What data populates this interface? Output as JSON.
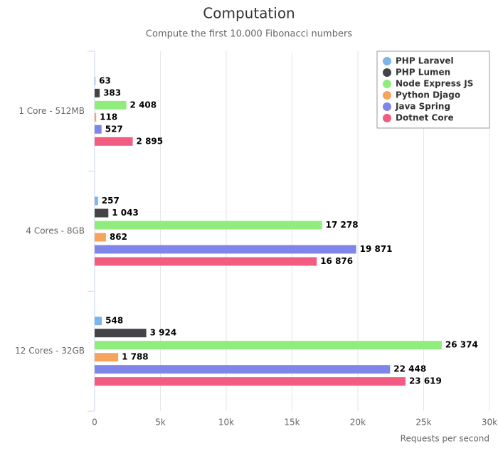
{
  "chart_data": {
    "type": "bar",
    "orientation": "horizontal",
    "title": "Computation",
    "subtitle": "Compute the first 10.000 Fibonacci numbers",
    "x_label": "Requests per second",
    "categories": [
      "1 Core - 512MB",
      "4 Cores - 8GB",
      "12 Cores - 32GB"
    ],
    "series": [
      {
        "name": "PHP Laravel",
        "color": "#7cb5ec",
        "values": [
          63,
          257,
          548
        ],
        "value_labels": [
          "63",
          "257",
          "548"
        ]
      },
      {
        "name": "PHP Lumen",
        "color": "#434348",
        "values": [
          383,
          1043,
          3924
        ],
        "value_labels": [
          "383",
          "1 043",
          "3 924"
        ]
      },
      {
        "name": "Node Express JS",
        "color": "#90ed7d",
        "values": [
          2408,
          17278,
          26374
        ],
        "value_labels": [
          "2 408",
          "17 278",
          "26 374"
        ]
      },
      {
        "name": "Python Djago",
        "color": "#f7a35c",
        "values": [
          118,
          862,
          1788
        ],
        "value_labels": [
          "118",
          "862",
          "1 788"
        ]
      },
      {
        "name": "Java Spring",
        "color": "#8085e9",
        "values": [
          527,
          19871,
          22448
        ],
        "value_labels": [
          "527",
          "19 871",
          "22 448"
        ]
      },
      {
        "name": "Dotnet Core",
        "color": "#f15c80",
        "values": [
          2895,
          16876,
          23619
        ],
        "value_labels": [
          "2 895",
          "16 876",
          "23 619"
        ]
      }
    ],
    "xlim": [
      0,
      30000
    ],
    "xticks": [
      0,
      {
        "value": 5000,
        "label": "5k"
      },
      {
        "value": 10000,
        "label": "10k"
      },
      {
        "value": 15000,
        "label": "15k"
      },
      {
        "value": 20000,
        "label": "20k"
      },
      {
        "value": 25000,
        "label": "25k"
      },
      {
        "value": 30000,
        "label": "30k"
      }
    ],
    "grid": true,
    "legend": "top-right"
  }
}
